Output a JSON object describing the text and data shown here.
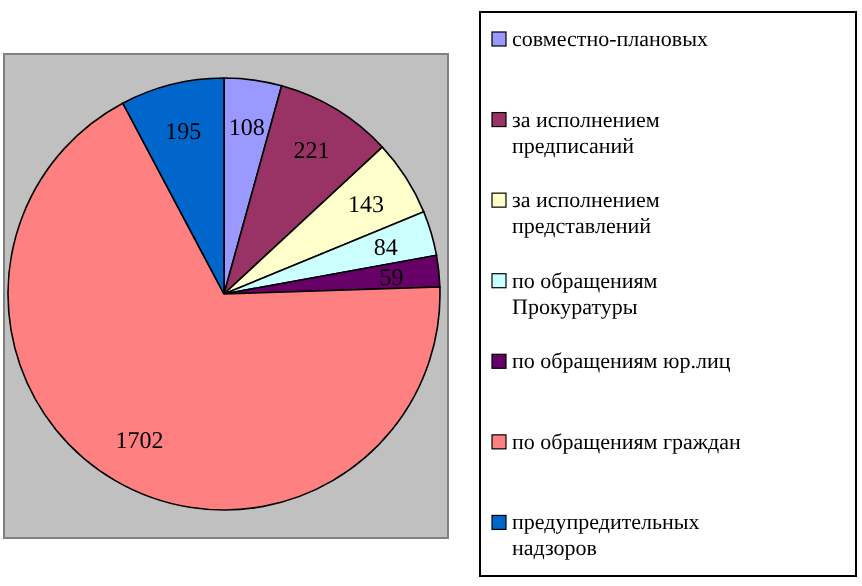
{
  "chart_data": {
    "type": "pie",
    "categories": [
      "совместно-плановых",
      "за исполнением предписаний",
      "за исполнением представлений",
      "по обращениям Прокуратуры",
      "по обращениям юр.лиц",
      "по обращениям граждан",
      "предупредительных надзоров"
    ],
    "values": [
      108,
      221,
      143,
      84,
      59,
      1702,
      195
    ],
    "colors": [
      "#9999ff",
      "#993366",
      "#ffffcc",
      "#ccffff",
      "#660066",
      "#ff8080",
      "#0066cc"
    ],
    "data_labels": true,
    "legend": "right"
  }
}
